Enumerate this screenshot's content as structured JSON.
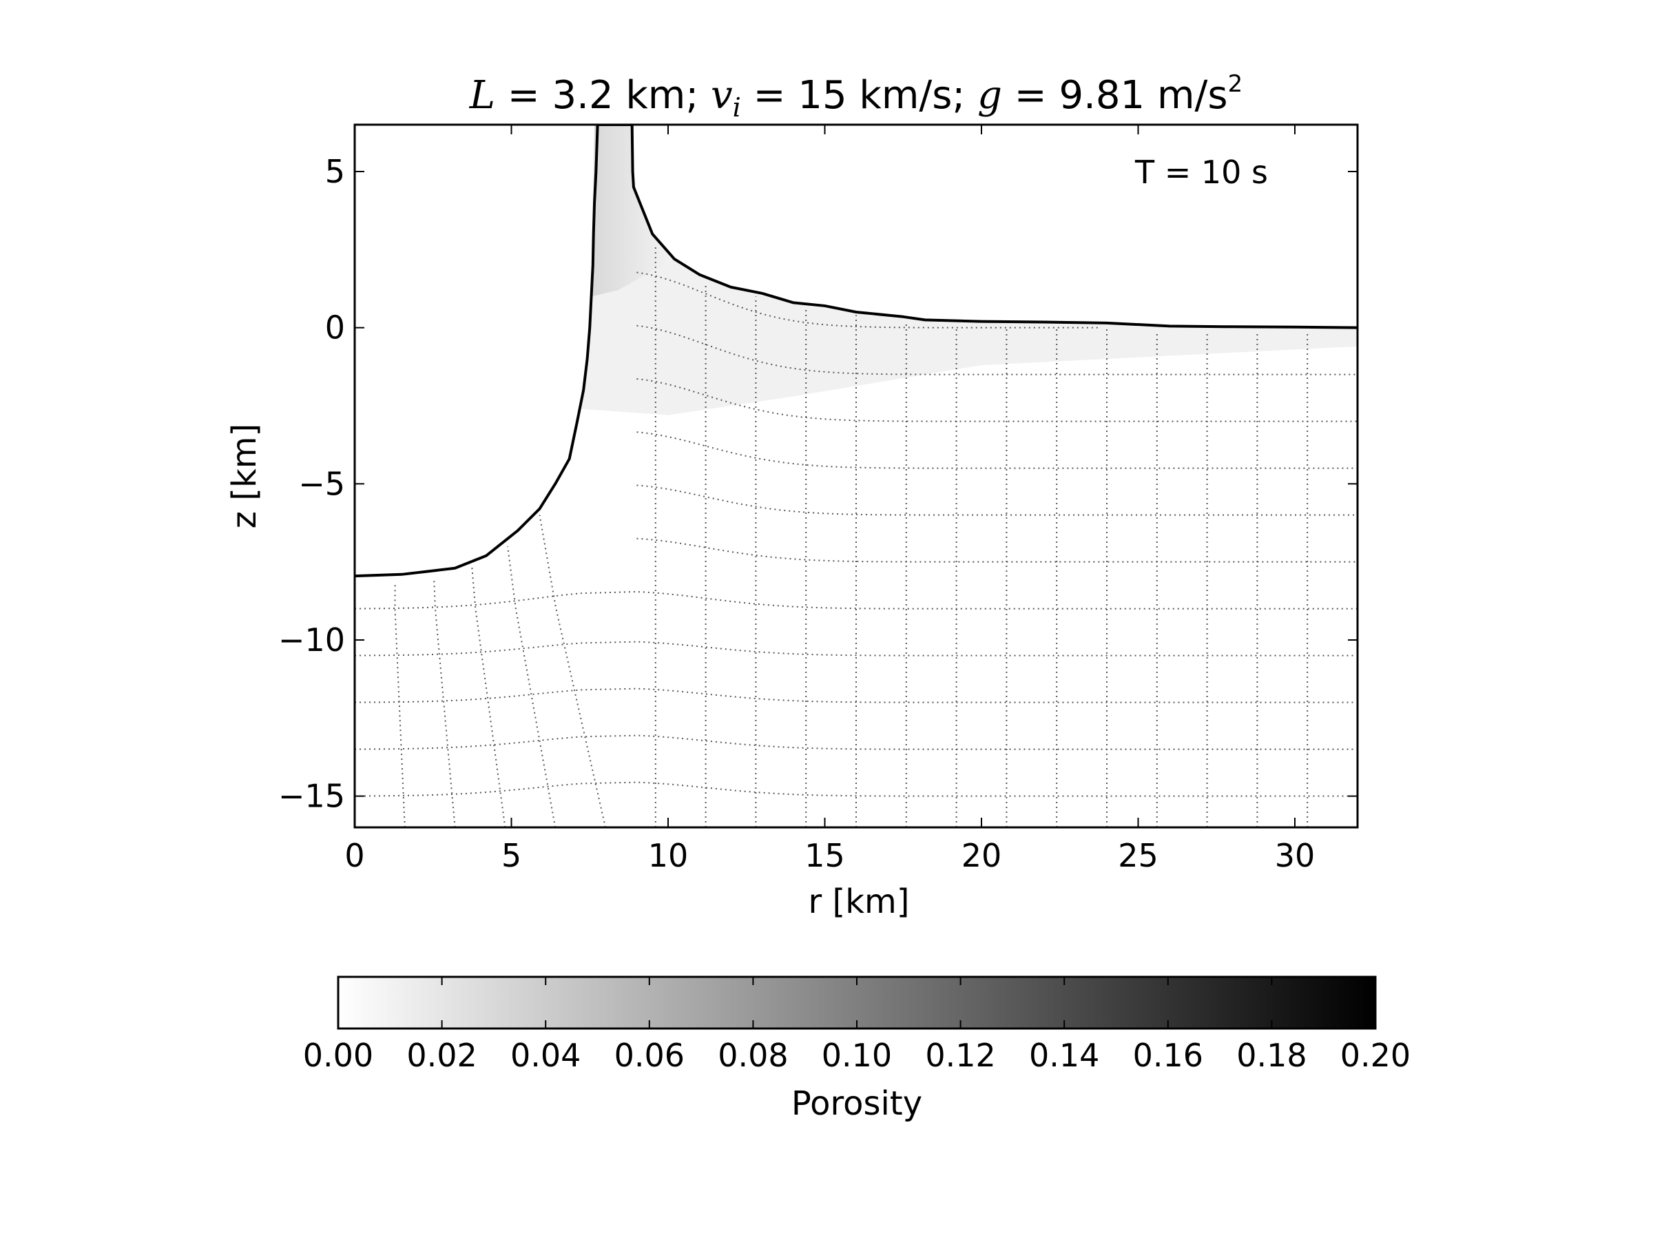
{
  "chart_data": {
    "type": "heatmap",
    "title": {
      "var1": "L",
      "part1": " = 3.2 km; ",
      "var2": "v",
      "var2_sub": "i",
      "part2": " = 15 km/s; ",
      "var3": "g",
      "part3": " = 9.81 m/s",
      "sup": "2"
    },
    "annotation": "T =  10 s",
    "xlabel": "r [km]",
    "ylabel": "z [km]",
    "xlim": [
      0,
      32
    ],
    "ylim": [
      -16,
      6.5
    ],
    "xticks": [
      0,
      5,
      10,
      15,
      20,
      25,
      30
    ],
    "xtick_labels": [
      "0",
      "5",
      "10",
      "15",
      "20",
      "25",
      "30"
    ],
    "yticks": [
      5,
      0,
      -5,
      -10,
      -15
    ],
    "ytick_labels": [
      "5",
      "0",
      "−5",
      "−10",
      "−15"
    ],
    "grid": false,
    "colorbar": {
      "label": "Porosity",
      "range": [
        0.0,
        0.2
      ],
      "ticks": [
        0.0,
        0.02,
        0.04,
        0.06,
        0.08,
        0.1,
        0.12,
        0.14,
        0.16,
        0.18,
        0.2
      ],
      "tick_labels": [
        "0.00",
        "0.02",
        "0.04",
        "0.06",
        "0.08",
        "0.10",
        "0.12",
        "0.14",
        "0.16",
        "0.18",
        "0.20"
      ],
      "colormap": "white-to-black",
      "placement": "bottom"
    },
    "material_boundary": [
      [
        0,
        -7.95
      ],
      [
        1.5,
        -7.9
      ],
      [
        2.2,
        -7.82
      ],
      [
        3.2,
        -7.7
      ],
      [
        4.2,
        -7.3
      ],
      [
        5.2,
        -6.5
      ],
      [
        5.9,
        -5.8
      ],
      [
        6.4,
        -5.0
      ],
      [
        6.85,
        -4.2
      ],
      [
        7.1,
        -3.0
      ],
      [
        7.3,
        -2.0
      ],
      [
        7.42,
        -1.0
      ],
      [
        7.5,
        0.0
      ],
      [
        7.55,
        1.0
      ],
      [
        7.6,
        2.0
      ],
      [
        7.62,
        3.0
      ],
      [
        7.65,
        4.0
      ],
      [
        7.7,
        5.0
      ],
      [
        7.75,
        6.5
      ],
      [
        8.85,
        6.5
      ],
      [
        8.87,
        5.0
      ],
      [
        8.9,
        4.5
      ],
      [
        9.1,
        4.0
      ],
      [
        9.5,
        3.0
      ],
      [
        10.2,
        2.2
      ],
      [
        11.0,
        1.7
      ],
      [
        12.0,
        1.3
      ],
      [
        13.0,
        1.1
      ],
      [
        14.0,
        0.8
      ],
      [
        15.0,
        0.7
      ],
      [
        16.0,
        0.5
      ],
      [
        17.5,
        0.35
      ],
      [
        18.2,
        0.25
      ],
      [
        20.0,
        0.2
      ],
      [
        22.0,
        0.18
      ],
      [
        24.0,
        0.15
      ],
      [
        26.0,
        0.05
      ],
      [
        28.0,
        0.03
      ],
      [
        30.0,
        0.02
      ],
      [
        32.0,
        0.0
      ]
    ],
    "tracer_rows_z": [
      0,
      -1.5,
      -3,
      -4.5,
      -6,
      -7.5,
      -9,
      -10.5,
      -12,
      -13.5,
      -15
    ],
    "tracer_columns_r": [
      1.6,
      3.2,
      4.8,
      6.4,
      8.0,
      9.6,
      11.2,
      12.8,
      14.4,
      16.0,
      17.6,
      19.2,
      20.8,
      22.4,
      24.0,
      25.6,
      27.2,
      28.8,
      30.4,
      32.0
    ],
    "colors": {
      "boundary": "#000000",
      "tracers": "#555555",
      "porosity_max": "#000000",
      "porosity_min": "#ffffff"
    }
  }
}
